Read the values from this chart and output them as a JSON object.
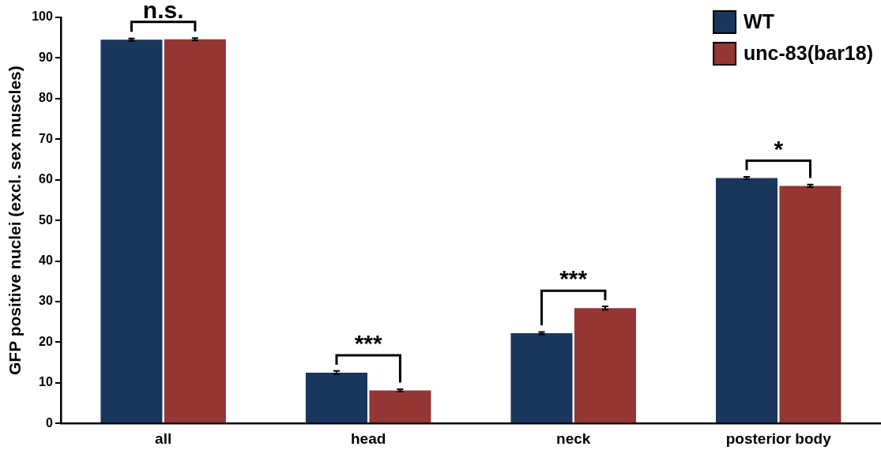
{
  "chart_data": {
    "type": "bar",
    "ylabel": "GFP positive nuclei (excl. sex muscles)",
    "categories": [
      "all",
      "head",
      "neck",
      "posterior body"
    ],
    "series": [
      {
        "name": "WT",
        "color": "#1a365d",
        "values": [
          94.5,
          12.5,
          22.2,
          60.4
        ],
        "errors": [
          0.3,
          0.4,
          0.3,
          0.3
        ]
      },
      {
        "name": "unc-83(bar18)",
        "color": "#943634",
        "values": [
          94.6,
          8.1,
          28.4,
          58.5
        ],
        "errors": [
          0.3,
          0.3,
          0.4,
          0.3
        ]
      }
    ],
    "ylim": [
      0,
      100
    ],
    "yticks": [
      0,
      10,
      20,
      30,
      40,
      50,
      60,
      70,
      80,
      90,
      100
    ],
    "grid": false,
    "legend": "top right",
    "annotations": [
      "n.s.",
      "***",
      "***",
      "*"
    ]
  }
}
